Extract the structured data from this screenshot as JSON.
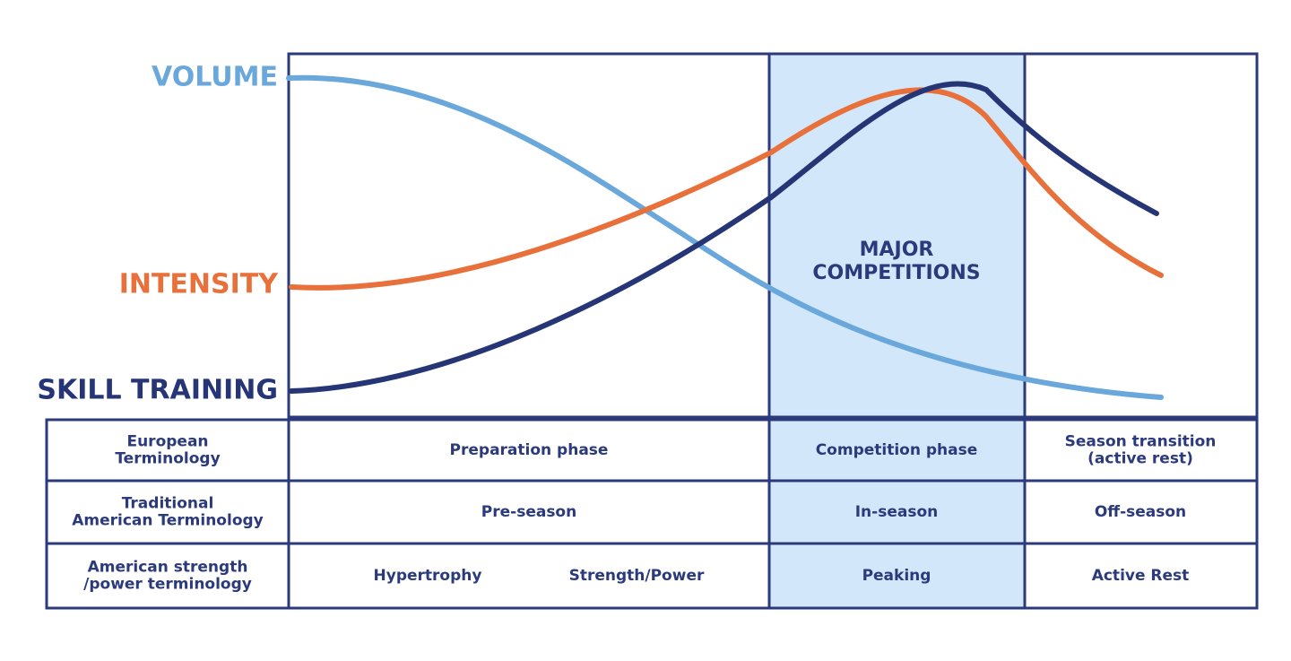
{
  "labels": {
    "volume": "VOLUME",
    "intensity": "INTENSITY",
    "skill_training": "SKILL TRAINING"
  },
  "band_label": [
    "MAJOR",
    "COMPETITIONS"
  ],
  "table": {
    "rows": [
      {
        "header": [
          "European",
          "Terminology"
        ],
        "cells": [
          [
            "Preparation phase"
          ],
          [
            "Competition phase"
          ],
          [
            "Season transition",
            "(active rest)"
          ]
        ]
      },
      {
        "header": [
          "Traditional",
          "American Terminology"
        ],
        "cells": [
          [
            "Pre-season"
          ],
          [
            "In-season"
          ],
          [
            "Off-season"
          ]
        ]
      },
      {
        "header": [
          "American strength",
          "/power terminology"
        ],
        "cells": [
          [
            "Hypertrophy",
            "Strength/Power"
          ],
          [
            "Peaking"
          ],
          [
            "Active Rest"
          ]
        ]
      }
    ]
  }
}
